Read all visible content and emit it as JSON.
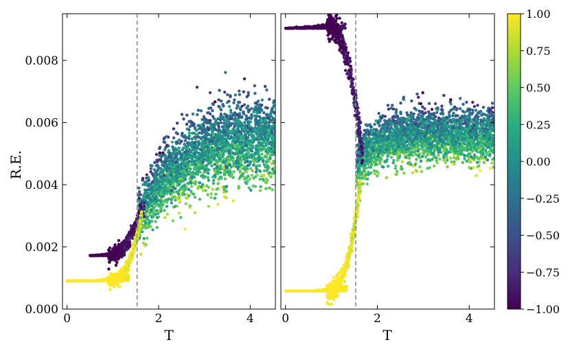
{
  "chart_data": [
    {
      "type": "scatter",
      "panel": "left",
      "xlabel": "T",
      "ylabel": "R.E.",
      "xlim": [
        -0.1,
        4.55
      ],
      "ylim": [
        0.0,
        0.0095
      ],
      "xticks": [
        0,
        2,
        4
      ],
      "xtick_labels": [
        "0",
        "2",
        "4"
      ],
      "yticks": [
        0.0,
        0.002,
        0.004,
        0.006,
        0.008
      ],
      "ytick_labels": [
        "0.000",
        "0.002",
        "0.004",
        "0.006",
        "0.008"
      ],
      "vline_x": 1.53,
      "vline_style": "dashed",
      "color_encoding": "viridis colormap, value range -1.00 to 1.00",
      "branches": [
        {
          "color_value": -1.0,
          "plateau_y": 0.00172,
          "x_range": [
            0.5,
            1.25
          ]
        },
        {
          "color_value": 1.0,
          "plateau_y": 0.00091,
          "x_range": [
            0.0,
            1.35
          ]
        }
      ],
      "high_T_band": {
        "x_range": [
          1.6,
          4.55
        ],
        "y_range_at_T_4_5": [
          0.0045,
          0.0072
        ]
      }
    },
    {
      "type": "scatter",
      "panel": "right",
      "xlabel": "T",
      "ylabel": "",
      "xlim": [
        -0.1,
        4.55
      ],
      "ylim": [
        0.0,
        0.0095
      ],
      "xticks": [
        0,
        2,
        4
      ],
      "xtick_labels": [
        "0",
        "2",
        "4"
      ],
      "vline_x": 1.53,
      "vline_style": "dashed",
      "color_encoding": "viridis colormap, value range -1.00 to 1.00",
      "branches": [
        {
          "color_value": -1.0,
          "plateau_y": 0.00903,
          "x_range": [
            0.0,
            1.3
          ]
        },
        {
          "color_value": 1.0,
          "plateau_y": 0.00058,
          "x_range": [
            0.0,
            1.35
          ]
        }
      ],
      "high_T_band": {
        "x_range": [
          1.6,
          4.55
        ],
        "y_range_at_T_4_5": [
          0.0045,
          0.0068
        ]
      }
    }
  ],
  "colorbar": {
    "ticks": [
      1.0,
      0.75,
      0.5,
      0.25,
      0.0,
      -0.25,
      -0.5,
      -0.75,
      -1.0
    ],
    "tick_labels": [
      "1.00",
      "0.75",
      "0.50",
      "0.25",
      "0.00",
      "−0.25",
      "−0.50",
      "−0.75",
      "−1.00"
    ],
    "colormap": "viridis",
    "range": [
      -1.0,
      1.0
    ]
  }
}
